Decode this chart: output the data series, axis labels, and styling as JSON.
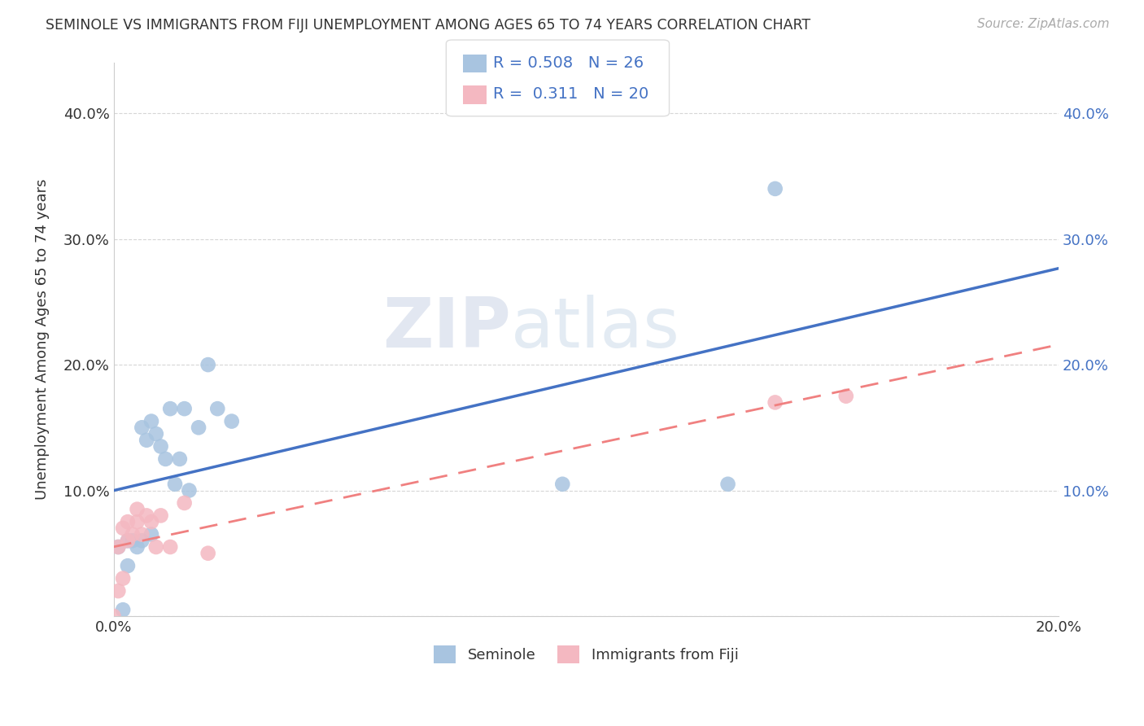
{
  "title": "SEMINOLE VS IMMIGRANTS FROM FIJI UNEMPLOYMENT AMONG AGES 65 TO 74 YEARS CORRELATION CHART",
  "source": "Source: ZipAtlas.com",
  "ylabel": "Unemployment Among Ages 65 to 74 years",
  "xlabel": "",
  "xlim": [
    0.0,
    0.2
  ],
  "ylim": [
    0.0,
    0.44
  ],
  "xticks": [
    0.0,
    0.04,
    0.08,
    0.12,
    0.16,
    0.2
  ],
  "yticks": [
    0.0,
    0.1,
    0.2,
    0.3,
    0.4
  ],
  "xticklabels": [
    "0.0%",
    "",
    "",
    "",
    "",
    "20.0%"
  ],
  "yticklabels": [
    "",
    "10.0%",
    "20.0%",
    "30.0%",
    "40.0%"
  ],
  "seminole_x": [
    0.001,
    0.002,
    0.003,
    0.003,
    0.004,
    0.005,
    0.006,
    0.006,
    0.007,
    0.008,
    0.008,
    0.009,
    0.01,
    0.011,
    0.012,
    0.013,
    0.014,
    0.015,
    0.016,
    0.018,
    0.02,
    0.022,
    0.025,
    0.095,
    0.13,
    0.14
  ],
  "seminole_y": [
    0.055,
    0.005,
    0.06,
    0.04,
    0.06,
    0.055,
    0.06,
    0.15,
    0.14,
    0.065,
    0.155,
    0.145,
    0.135,
    0.125,
    0.165,
    0.105,
    0.125,
    0.165,
    0.1,
    0.15,
    0.2,
    0.165,
    0.155,
    0.105,
    0.105,
    0.34
  ],
  "fiji_x": [
    0.0,
    0.001,
    0.001,
    0.002,
    0.002,
    0.003,
    0.003,
    0.004,
    0.005,
    0.005,
    0.006,
    0.007,
    0.008,
    0.009,
    0.01,
    0.012,
    0.015,
    0.02,
    0.14,
    0.155
  ],
  "fiji_y": [
    0.0,
    0.02,
    0.055,
    0.03,
    0.07,
    0.06,
    0.075,
    0.065,
    0.075,
    0.085,
    0.065,
    0.08,
    0.075,
    0.055,
    0.08,
    0.055,
    0.09,
    0.05,
    0.17,
    0.175
  ],
  "seminole_color": "#a8c4e0",
  "fiji_color": "#f4b8c1",
  "seminole_line_color": "#4472c4",
  "fiji_line_color": "#f08080",
  "R_seminole": 0.508,
  "N_seminole": 26,
  "R_fiji": 0.311,
  "N_fiji": 20,
  "watermark_zip": "ZIP",
  "watermark_atlas": "atlas",
  "background_color": "#ffffff",
  "grid_color": "#cccccc",
  "legend_labels": [
    "Seminole",
    "Immigrants from Fiji"
  ]
}
